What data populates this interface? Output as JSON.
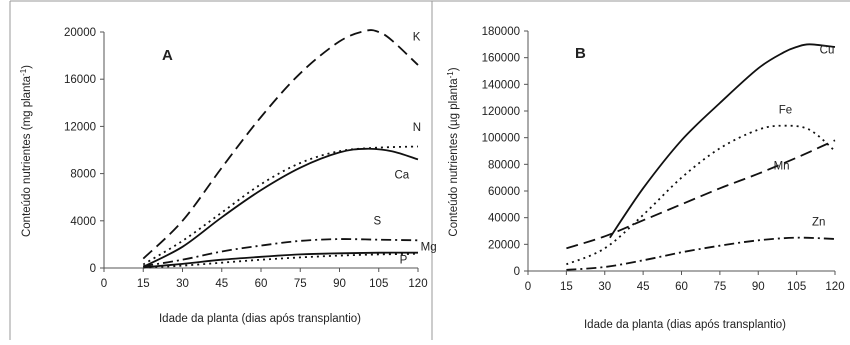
{
  "chart_data": [
    {
      "panel": "A",
      "type": "line",
      "xlabel": "Idade da planta (dias após transplantio)",
      "ylabel": "Conteúdo nutrientes (mg planta-1)",
      "ylabel_main": "Conteúdo nutrientes (mg planta",
      "ylabel_sup": "-1",
      "ylabel_close": ")",
      "xlim": [
        0,
        120
      ],
      "ylim": [
        0,
        20000
      ],
      "x_ticks": [
        0,
        15,
        30,
        45,
        60,
        75,
        90,
        105,
        120
      ],
      "y_ticks": [
        0,
        4000,
        8000,
        12000,
        16000,
        20000
      ],
      "x_tick_labels": [
        "0",
        "15",
        "30",
        "45",
        "60",
        "75",
        "90",
        "105",
        "120"
      ],
      "y_tick_labels": [
        "0",
        "4000",
        "8000",
        "12000",
        "16000",
        "20000"
      ],
      "series": [
        {
          "name": "K",
          "dash": "long-dash",
          "x": [
            15,
            30,
            45,
            60,
            75,
            90,
            100,
            105,
            110,
            120
          ],
          "y": [
            800,
            4000,
            8500,
            12800,
            16500,
            19200,
            20100,
            20000,
            19300,
            17200
          ]
        },
        {
          "name": "N",
          "dash": "dot",
          "x": [
            15,
            30,
            45,
            60,
            75,
            90,
            105,
            120
          ],
          "y": [
            300,
            2300,
            4700,
            7100,
            8900,
            9900,
            10200,
            10300
          ]
        },
        {
          "name": "Ca",
          "dash": "solid",
          "x": [
            15,
            30,
            45,
            60,
            75,
            90,
            100,
            110,
            120
          ],
          "y": [
            100,
            1800,
            4300,
            6600,
            8500,
            9800,
            10100,
            9900,
            9200
          ]
        },
        {
          "name": "S",
          "dash": "dash-dot",
          "x": [
            15,
            30,
            45,
            60,
            75,
            90,
            105,
            120
          ],
          "y": [
            150,
            700,
            1400,
            1900,
            2300,
            2450,
            2400,
            2350
          ]
        },
        {
          "name": "Mg",
          "dash": "solid",
          "x": [
            15,
            30,
            45,
            60,
            75,
            90,
            105,
            120
          ],
          "y": [
            50,
            350,
            700,
            950,
            1150,
            1250,
            1300,
            1300
          ]
        },
        {
          "name": "P",
          "dash": "dot",
          "x": [
            15,
            30,
            45,
            60,
            75,
            90,
            105,
            120
          ],
          "y": [
            30,
            200,
            450,
            700,
            900,
            1050,
            1150,
            1200
          ]
        }
      ],
      "label_positions": {
        "K": [
          118,
          19300
        ],
        "N": [
          118,
          11600
        ],
        "Ca": [
          111,
          7600
        ],
        "S": [
          103,
          3700
        ],
        "Mg": [
          121,
          1500
        ],
        "P": [
          113,
          400
        ]
      }
    },
    {
      "panel": "B",
      "type": "line",
      "xlabel": "Idade da planta (dias após transplantio)",
      "ylabel": "Conteúdo nutrientes (µg planta-1)",
      "ylabel_main": "Conteúdo nutrientes (µg planta",
      "ylabel_sup": "-1",
      "ylabel_close": ")",
      "xlim": [
        0,
        120
      ],
      "ylim": [
        0,
        180000
      ],
      "x_ticks": [
        0,
        15,
        30,
        45,
        60,
        75,
        90,
        105,
        120
      ],
      "y_ticks": [
        0,
        20000,
        40000,
        60000,
        80000,
        100000,
        120000,
        140000,
        160000,
        180000
      ],
      "x_tick_labels": [
        "0",
        "15",
        "30",
        "45",
        "60",
        "75",
        "90",
        "105",
        "120"
      ],
      "y_tick_labels": [
        "0",
        "20000",
        "40000",
        "60000",
        "80000",
        "100000",
        "120000",
        "140000",
        "160000",
        "180000"
      ],
      "series": [
        {
          "name": "Cu",
          "dash": "solid",
          "x": [
            32,
            45,
            60,
            75,
            90,
            100,
            105,
            110,
            120
          ],
          "y": [
            25000,
            62000,
            98000,
            126000,
            152000,
            164000,
            168000,
            170000,
            168000
          ]
        },
        {
          "name": "Fe",
          "dash": "dot",
          "x": [
            15,
            30,
            45,
            60,
            75,
            90,
            100,
            110,
            120
          ],
          "y": [
            5000,
            17000,
            42000,
            70000,
            92000,
            106000,
            109000,
            106000,
            90000
          ]
        },
        {
          "name": "Mn",
          "dash": "long-dash",
          "x": [
            15,
            30,
            45,
            60,
            75,
            90,
            105,
            120
          ],
          "y": [
            17000,
            26000,
            38000,
            50000,
            62000,
            73000,
            85000,
            98000
          ]
        },
        {
          "name": "Zn",
          "dash": "dash-dot",
          "x": [
            15,
            30,
            45,
            60,
            75,
            90,
            105,
            120
          ],
          "y": [
            800,
            3000,
            8000,
            14000,
            19000,
            23000,
            25000,
            24000
          ]
        }
      ],
      "label_positions": {
        "Cu": [
          114,
          163000
        ],
        "Fe": [
          98,
          118000
        ],
        "Mn": [
          96,
          76000
        ],
        "Zn": [
          111,
          34000
        ]
      }
    }
  ]
}
